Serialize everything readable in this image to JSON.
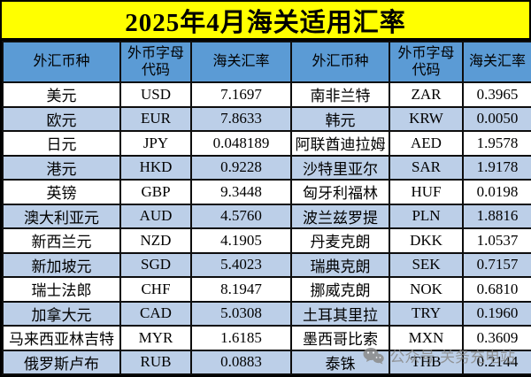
{
  "title": "2025年4月海关适用汇率",
  "colors": {
    "title_bg": "#FFFF00",
    "header_bg": "#5B9BD5",
    "band_row_bg": "#BCCFE8",
    "row_bg": "#FFFFFF",
    "border": "#000000",
    "text": "#000000",
    "watermark_gray": "#8A8A8A"
  },
  "table": {
    "headers": [
      "外汇币种",
      "外币字母代码",
      "海关汇率",
      "外汇币种",
      "外币字母代码",
      "海关汇率"
    ],
    "rows": [
      [
        "美元",
        "USD",
        "7.1697",
        "南非兰特",
        "ZAR",
        "0.3965"
      ],
      [
        "欧元",
        "EUR",
        "7.8633",
        "韩元",
        "KRW",
        "0.0050"
      ],
      [
        "日元",
        "JPY",
        "0.048189",
        "阿联酋迪拉姆",
        "AED",
        "1.9578"
      ],
      [
        "港元",
        "HKD",
        "0.9228",
        "沙特里亚尔",
        "SAR",
        "1.9178"
      ],
      [
        "英镑",
        "GBP",
        "9.3448",
        "匈牙利福林",
        "HUF",
        "0.0198"
      ],
      [
        "澳大利亚元",
        "AUD",
        "4.5760",
        "波兰兹罗提",
        "PLN",
        "1.8816"
      ],
      [
        "新西兰元",
        "NZD",
        "4.1905",
        "丹麦克朗",
        "DKK",
        "1.0537"
      ],
      [
        "新加坡元",
        "SGD",
        "5.4023",
        "瑞典克朗",
        "SEK",
        "0.7157"
      ],
      [
        "瑞士法郎",
        "CHF",
        "8.1947",
        "挪威克朗",
        "NOK",
        "0.6810"
      ],
      [
        "加拿大元",
        "CAD",
        "5.0308",
        "土耳其里拉",
        "TRY",
        "0.1960"
      ],
      [
        "马来西亚林吉特",
        "MYR",
        "1.6185",
        "墨西哥比索",
        "MXN",
        "0.3609"
      ],
      [
        "俄罗斯卢布",
        "RUB",
        "0.0883",
        "泰铢",
        "THB",
        "0.2144"
      ]
    ]
  },
  "watermark": {
    "icon": "wechat-icon",
    "text": "公众号·关务充电站"
  }
}
